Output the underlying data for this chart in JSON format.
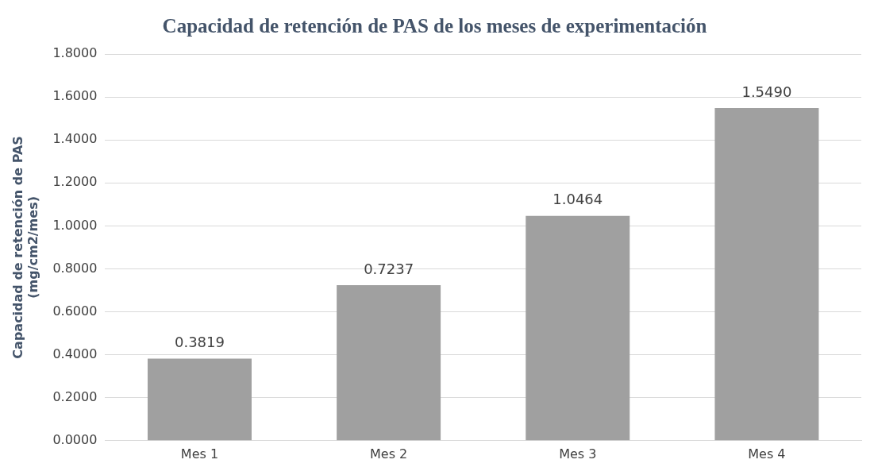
{
  "chart_data": {
    "type": "bar",
    "title": "Capacidad de retención de PAS de los meses de experimentación",
    "ylabel": "Capacidad de retención de PAS\n(mg/cm2/mes)",
    "categories": [
      "Mes 1",
      "Mes 2",
      "Mes 3",
      "Mes 4"
    ],
    "values": [
      0.3819,
      0.7237,
      1.0464,
      1.549
    ],
    "value_labels": [
      "0.3819",
      "0.7237",
      "1.0464",
      "1.5490"
    ],
    "color": "#a0a0a0",
    "ylim": [
      0,
      1.8
    ],
    "yticks": [
      {
        "value": 0,
        "label": "0.0000"
      },
      {
        "value": 0.2,
        "label": "0.2000"
      },
      {
        "value": 0.4,
        "label": "0.4000"
      },
      {
        "value": 0.6,
        "label": "0.6000"
      },
      {
        "value": 0.8,
        "label": "0.8000"
      },
      {
        "value": 1.0,
        "label": "1.0000"
      },
      {
        "value": 1.2,
        "label": "1.2000"
      },
      {
        "value": 1.4,
        "label": "1.4000"
      },
      {
        "value": 1.6,
        "label": "1.6000"
      },
      {
        "value": 1.8,
        "label": "1.8000"
      }
    ],
    "grid": "y",
    "legend": false
  }
}
